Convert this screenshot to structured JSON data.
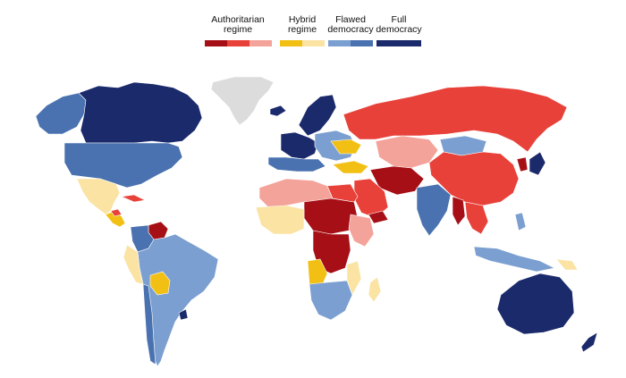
{
  "legend": [
    {
      "label": "Authoritarian\nregime",
      "colors": [
        "#a50f15",
        "#e8413a",
        "#f4a39a"
      ]
    },
    {
      "label": "Hybrid\nregime",
      "colors": [
        "#f2c014",
        "#fbe3a4"
      ]
    },
    {
      "label": "Flawed\ndemocracy",
      "colors": [
        "#7b9fd0",
        "#4a72b0"
      ]
    },
    {
      "label": "Full\ndemocracy",
      "colors": [
        "#1b2a6b"
      ]
    }
  ],
  "colors": {
    "no_data": "#dcdcdc",
    "auth_dark": "#a50f15",
    "auth_mid": "#e8413a",
    "auth_light": "#f4a39a",
    "hybrid_dark": "#f2c014",
    "hybrid_light": "#fbe3a4",
    "flawed_light": "#7b9fd0",
    "flawed_dark": "#4a72b0",
    "full": "#1b2a6b"
  }
}
